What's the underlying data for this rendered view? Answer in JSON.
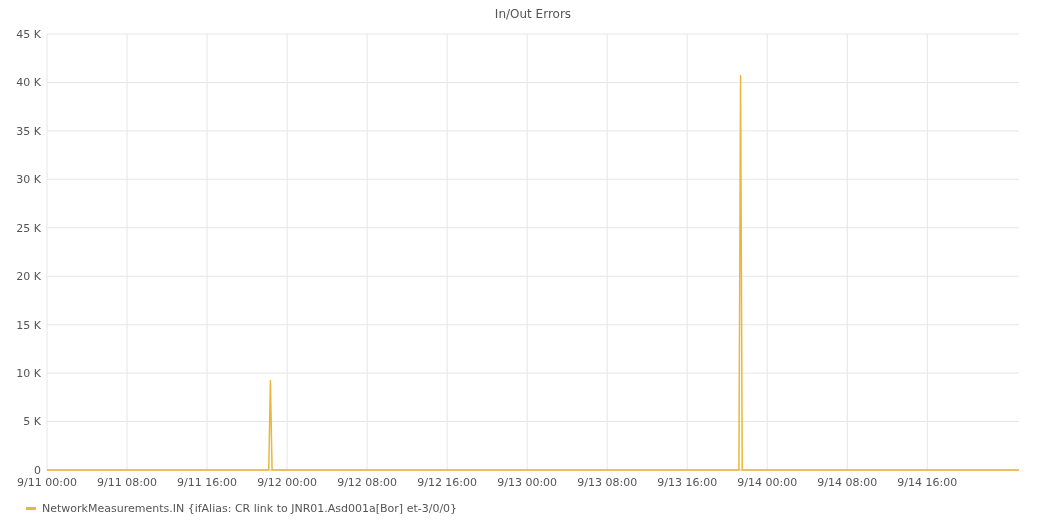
{
  "chart_data": {
    "type": "line",
    "title": "In/Out Errors",
    "x": [
      "--09-11T00:00",
      "--09-11T22:10",
      "--09-11T22:20",
      "--09-11T22:30",
      "--09-13T21:10",
      "--09-13T21:20",
      "--09-13T21:30",
      "--09-15T01:10"
    ],
    "series": [
      {
        "name": "NetworkMeasurements.IN {ifAlias: CR link to JNR01.Asd001a[Bor] et-3/0/0}",
        "color": "#eab839",
        "values": [
          0,
          0,
          9200,
          0,
          0,
          40700,
          0,
          0
        ]
      }
    ],
    "xlim": [
      "--09-11T00:00",
      "--09-15T01:10"
    ],
    "xticks": [
      {
        "value": "--09-11T00:00",
        "label": "9/11 00:00"
      },
      {
        "value": "--09-11T08:00",
        "label": "9/11 08:00"
      },
      {
        "value": "--09-11T16:00",
        "label": "9/11 16:00"
      },
      {
        "value": "--09-12T00:00",
        "label": "9/12 00:00"
      },
      {
        "value": "--09-12T08:00",
        "label": "9/12 08:00"
      },
      {
        "value": "--09-12T16:00",
        "label": "9/12 16:00"
      },
      {
        "value": "--09-13T00:00",
        "label": "9/13 00:00"
      },
      {
        "value": "--09-13T08:00",
        "label": "9/13 08:00"
      },
      {
        "value": "--09-13T16:00",
        "label": "9/13 16:00"
      },
      {
        "value": "--09-14T00:00",
        "label": "9/14 00:00"
      },
      {
        "value": "--09-14T08:00",
        "label": "9/14 08:00"
      },
      {
        "value": "--09-14T16:00",
        "label": "9/14 16:00"
      }
    ],
    "ylim": [
      0,
      45000
    ],
    "yticks": [
      0,
      {
        "value": 5000,
        "label": "5 K"
      },
      {
        "value": 10000,
        "label": "10 K"
      },
      {
        "value": 15000,
        "label": "15 K"
      },
      {
        "value": 20000,
        "label": "20 K"
      },
      {
        "value": 25000,
        "label": "25 K"
      },
      {
        "value": 30000,
        "label": "30 K"
      },
      {
        "value": 35000,
        "label": "35 K"
      },
      {
        "value": 40000,
        "label": "40 K"
      },
      {
        "value": 45000,
        "label": "45 K"
      }
    ],
    "grid": true,
    "legend": "bottom left",
    "marker": "none",
    "line_style": "solid"
  }
}
